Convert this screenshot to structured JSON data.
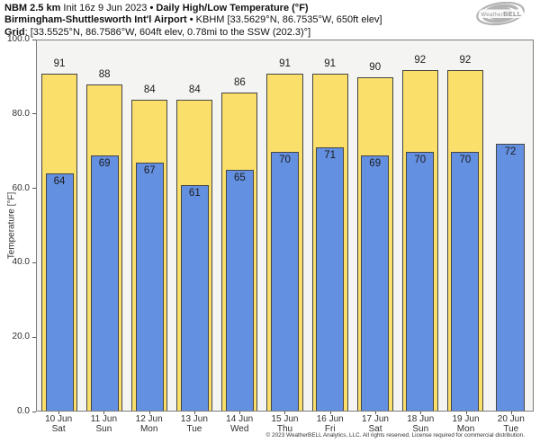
{
  "header": {
    "model": "NBM 2.5 km",
    "init": "Init 16z 9 Jun 2023",
    "separator": "•",
    "product": "Daily High/Low Temperature (°F)",
    "station": "Birmingham-Shuttlesworth Int'l Airport",
    "station_info": "KBHM [33.5629°N, 86.7535°W, 650ft elev]",
    "grid_label": "Grid",
    "grid_info": ": [33.5525°N, 86.7586°W, 604ft elev, 0.78mi to the SSW (202.3)°]"
  },
  "logo": {
    "brand_weather": "Weather",
    "brand_bell": "BELL"
  },
  "chart_data": {
    "type": "bar",
    "title": "Daily High/Low Temperature (°F)",
    "ylabel": "Temperature [°F]",
    "xlabel": "",
    "ylim": [
      0,
      100
    ],
    "yticks": [
      100,
      80,
      60,
      40,
      20,
      0
    ],
    "grid": false,
    "legend": "none",
    "categories": [
      "10 Jun Sat",
      "11 Jun Sun",
      "12 Jun Mon",
      "13 Jun Tue",
      "14 Jun Wed",
      "15 Jun Thu",
      "16 Jun Fri",
      "17 Jun Sat",
      "18 Jun Sun",
      "19 Jun Mon",
      "20 Jun Tue"
    ],
    "series": [
      {
        "name": "Daily High",
        "color": "#fbdf6b",
        "values": [
          91,
          88,
          84,
          84,
          86,
          91,
          91,
          90,
          92,
          92,
          null
        ]
      },
      {
        "name": "Daily Low",
        "color": "#6490e2",
        "values": [
          64,
          69,
          67,
          61,
          65,
          70,
          71,
          69,
          70,
          70,
          72
        ]
      }
    ]
  },
  "y_axis": {
    "label": "Temperature [°F]",
    "tick_labels": [
      "100.0",
      "80.0",
      "60.0",
      "40.0",
      "20.0",
      "0.0"
    ]
  },
  "x_axis": {
    "days": [
      {
        "date": "10 Jun",
        "dow": "Sat"
      },
      {
        "date": "11 Jun",
        "dow": "Sun"
      },
      {
        "date": "12 Jun",
        "dow": "Mon"
      },
      {
        "date": "13 Jun",
        "dow": "Tue"
      },
      {
        "date": "14 Jun",
        "dow": "Wed"
      },
      {
        "date": "15 Jun",
        "dow": "Thu"
      },
      {
        "date": "16 Jun",
        "dow": "Fri"
      },
      {
        "date": "17 Jun",
        "dow": "Sat"
      },
      {
        "date": "18 Jun",
        "dow": "Sun"
      },
      {
        "date": "19 Jun",
        "dow": "Mon"
      },
      {
        "date": "20 Jun",
        "dow": "Tue"
      }
    ]
  },
  "footer": "© 2023 WeatherBELL Analytics, LLC. All rights reserved. License required for commercial distribution.",
  "colors": {
    "high_bar": "#fbdf6b",
    "low_bar": "#6490e2",
    "bar_border": "#454545",
    "plot_bg": "#f4f4f2"
  }
}
